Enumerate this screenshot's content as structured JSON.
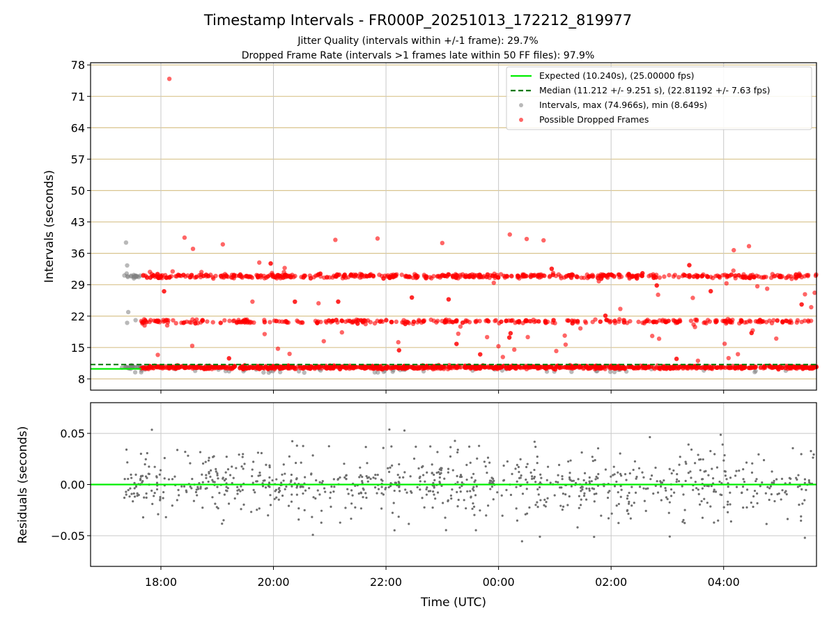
{
  "chart_data": [
    {
      "type": "scatter",
      "title": "Timestamp Intervals - FR000P_20251013_172212_819977",
      "subtitle_lines": [
        "Jitter Quality (intervals within +/-1 frame): 29.7%",
        "Dropped Frame Rate (intervals >1 frames late within 50 FF files): 97.9%"
      ],
      "ylabel": "Intervals (seconds)",
      "xlabel": "",
      "x_units": "hours since 18:00 UTC",
      "xlim": [
        -1.25,
        11.65
      ],
      "ylim": [
        5.5,
        78.5
      ],
      "y_ticks": [
        8,
        15,
        22,
        29,
        36,
        43,
        50,
        57,
        64,
        71,
        78
      ],
      "y_tick_labels": [
        "8",
        "15",
        "22",
        "29",
        "36",
        "43",
        "50",
        "57",
        "64",
        "71",
        "78"
      ],
      "horizontal_gridlines": [
        8,
        15,
        22,
        29,
        36,
        43,
        50,
        57,
        64,
        71,
        78
      ],
      "legend_position": "top-right",
      "legend": [
        "Expected (10.240s), (25.00000 fps)",
        "Median (11.212 +/- 9.251 s), (22.81192 +/- 7.63 fps)",
        "Intervals, max (74.966s), min (8.649s)",
        "Possible Dropped Frames"
      ],
      "expected_interval": 10.24,
      "median_interval": 11.212,
      "interval_max": 74.966,
      "interval_min": 8.649,
      "time_range": [
        -0.7,
        11.65
      ],
      "dropped_frame_bands": [
        10.6,
        20.8,
        30.9
      ],
      "dropped_frame_band_weights": [
        0.55,
        0.2,
        0.25
      ],
      "normal_points_until": -0.35,
      "dropped_outliers": [
        {
          "x": 0.15,
          "y": 74.9
        },
        {
          "x": 0.42,
          "y": 39.5
        },
        {
          "x": 0.57,
          "y": 37.0
        },
        {
          "x": 1.1,
          "y": 38.0
        },
        {
          "x": 3.1,
          "y": 39.0
        },
        {
          "x": 3.85,
          "y": 39.3
        },
        {
          "x": 5.0,
          "y": 38.3
        },
        {
          "x": 6.2,
          "y": 40.2
        },
        {
          "x": 6.5,
          "y": 39.2
        },
        {
          "x": 6.8,
          "y": 38.9
        },
        {
          "x": 10.18,
          "y": 36.7
        },
        {
          "x": 10.45,
          "y": 37.6
        }
      ],
      "gray_outliers": [
        {
          "x": -0.62,
          "y": 38.4
        },
        {
          "x": -0.6,
          "y": 33.3
        },
        {
          "x": -0.58,
          "y": 22.9
        },
        {
          "x": -0.6,
          "y": 20.5
        },
        {
          "x": -0.45,
          "y": 21.1
        },
        {
          "x": -0.3,
          "y": 20.5
        }
      ]
    },
    {
      "type": "scatter",
      "title": "",
      "ylabel": "Residuals (seconds)",
      "xlabel": "Time (UTC)",
      "xlim": [
        -1.25,
        11.65
      ],
      "ylim": [
        -0.08,
        0.08
      ],
      "y_ticks": [
        -0.05,
        0.0,
        0.05
      ],
      "y_tick_labels": [
        "−0.05",
        "0.00",
        "0.05"
      ],
      "x_ticks": [
        0,
        2,
        4,
        6,
        8,
        10
      ],
      "x_tick_labels": [
        "18:00",
        "20:00",
        "22:00",
        "00:00",
        "02:00",
        "04:00"
      ],
      "reference_line": 0.0,
      "residual_spread": 0.08,
      "residual_points_approx": 900
    }
  ],
  "colors": {
    "expected": "#00ee00",
    "median": "#007700",
    "intervals": "#808080",
    "dropped": "#ff0000",
    "grid": "#c8c8c8",
    "hgrid": "#d9c48e",
    "residuals": "#6e6e6e"
  }
}
